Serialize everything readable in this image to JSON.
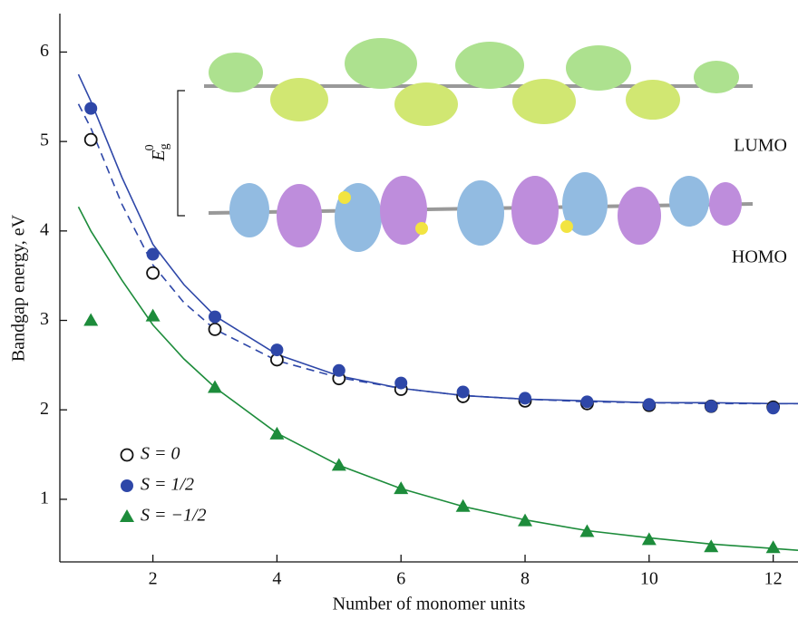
{
  "chart_data": {
    "type": "scatter",
    "xlabel": "Number of monomer units",
    "ylabel": "Bandgap energy, eV",
    "xlim": [
      0.5,
      12.4
    ],
    "ylim": [
      0.3,
      6.43
    ],
    "xticks": [
      2,
      4,
      6,
      8,
      10,
      12
    ],
    "yticks": [
      1,
      2,
      3,
      4,
      5,
      6
    ],
    "legend": "lower left",
    "x": [
      1,
      2,
      3,
      4,
      5,
      6,
      7,
      8,
      9,
      10,
      11,
      12
    ],
    "series": [
      {
        "name": "S = 0",
        "marker": "open-circle",
        "color": "#111111",
        "values": [
          5.02,
          3.53,
          2.9,
          2.56,
          2.35,
          2.23,
          2.15,
          2.1,
          2.07,
          2.05,
          2.04,
          2.03
        ]
      },
      {
        "name": "S = 1/2",
        "marker": "circle",
        "color": "#2e47a8",
        "values": [
          5.37,
          3.74,
          3.04,
          2.67,
          2.44,
          2.3,
          2.2,
          2.13,
          2.09,
          2.06,
          2.04,
          2.02
        ]
      },
      {
        "name": "S = −1/2",
        "marker": "triangle",
        "color": "#1d8c3b",
        "values": [
          3.0,
          3.05,
          2.25,
          1.73,
          1.38,
          1.12,
          0.92,
          0.76,
          0.64,
          0.55,
          0.47,
          0.46
        ]
      }
    ],
    "fits": [
      {
        "color": "#2e47a8",
        "dash": false,
        "x": [
          0.8,
          1,
          1.5,
          2,
          2.5,
          3,
          4,
          5,
          6,
          7,
          8,
          9,
          10,
          11,
          12,
          12.4
        ],
        "values": [
          5.75,
          5.45,
          4.6,
          3.85,
          3.4,
          3.05,
          2.62,
          2.38,
          2.24,
          2.16,
          2.12,
          2.1,
          2.08,
          2.08,
          2.07,
          2.07
        ]
      },
      {
        "color": "#2e47a8",
        "dash": true,
        "x": [
          0.8,
          1,
          1.5,
          2,
          2.5,
          3,
          4,
          5,
          6,
          7,
          8,
          9,
          10,
          11,
          12,
          12.4
        ],
        "values": [
          5.42,
          5.15,
          4.3,
          3.62,
          3.2,
          2.9,
          2.55,
          2.36,
          2.24,
          2.16,
          2.12,
          2.09,
          2.08,
          2.07,
          2.07,
          2.07
        ]
      },
      {
        "color": "#1d8c3b",
        "dash": false,
        "x": [
          0.8,
          1,
          1.5,
          2,
          2.5,
          3,
          4,
          5,
          6,
          7,
          8,
          9,
          10,
          11,
          12,
          12.4
        ],
        "values": [
          4.27,
          4.0,
          3.45,
          2.95,
          2.57,
          2.25,
          1.74,
          1.38,
          1.12,
          0.92,
          0.77,
          0.65,
          0.57,
          0.5,
          0.45,
          0.43
        ]
      }
    ],
    "annotations": {
      "lumo": "LUMO",
      "homo": "HOMO",
      "gap_symbol": "E",
      "gap_sub": "g",
      "gap_sup": "0"
    }
  }
}
